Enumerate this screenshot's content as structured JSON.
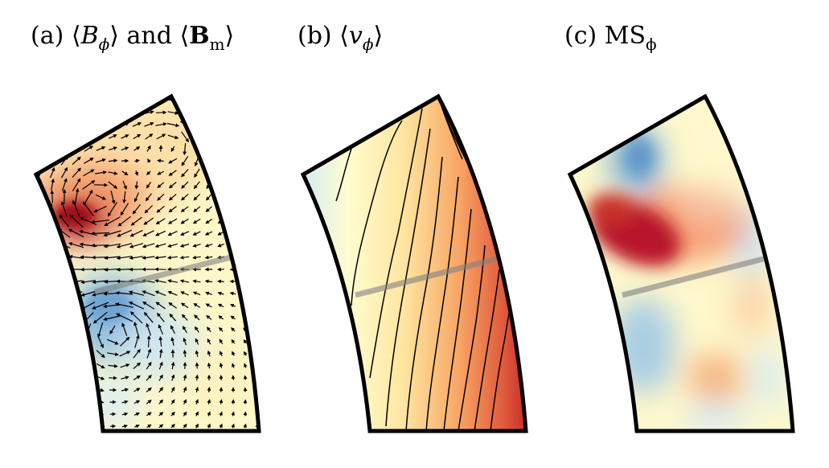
{
  "panels": [
    {
      "id": "a",
      "label": "(a)",
      "open": "⟨",
      "symbol": "B",
      "sub": "ϕ",
      "close": "⟩",
      "and": "and",
      "open2": "⟨",
      "symbol2": "B",
      "sub2": "m",
      "close2": "⟩",
      "field": "azimuthal magnetic field with meridional field vectors"
    },
    {
      "id": "b",
      "label": "(b)",
      "open": "⟨",
      "symbol": "v",
      "sub": "ϕ",
      "close": "⟩",
      "field": "azimuthal velocity with contour lines"
    },
    {
      "id": "c",
      "label": "(c)",
      "symbol": "MS",
      "sub": "ϕ",
      "field": "azimuthal Maxwell stress"
    }
  ],
  "colormap": {
    "negative": "#2166ac",
    "mid_negative": "#92c5de",
    "neutral": "#ffffbf",
    "mid_positive": "#f4a582",
    "positive": "#b2182b"
  },
  "overlay": {
    "line_color": "#808080",
    "outline_color": "#000000"
  }
}
